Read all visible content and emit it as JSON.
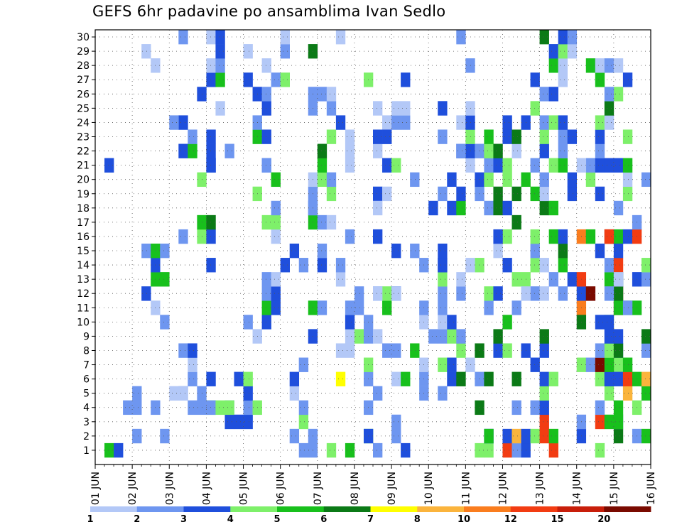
{
  "chart_data": {
    "type": "heatmap",
    "title": "GEFS 6hr padavine po ansamblima Ivan Sedlo",
    "x_tick_labels": [
      "01 JUN",
      "02 JUN",
      "03 JUN",
      "04 JUN",
      "05 JUN",
      "06 JUN",
      "07 JUN",
      "08 JUN",
      "09 JUN",
      "10 JUN",
      "11 JUN",
      "12 JUN",
      "13 JUN",
      "14 JUN",
      "15 JUN",
      "16 JUN"
    ],
    "y_tick_labels": [
      "1",
      "2",
      "3",
      "4",
      "5",
      "6",
      "7",
      "8",
      "9",
      "10",
      "11",
      "12",
      "13",
      "14",
      "15",
      "16",
      "17",
      "18",
      "19",
      "20",
      "21",
      "22",
      "23",
      "24",
      "25",
      "26",
      "27",
      "28",
      "29",
      "30"
    ],
    "steps_per_day": 4,
    "time_steps": 60,
    "members": 30,
    "grid": true,
    "legend_position": "bottom",
    "colorbar": {
      "labels": [
        "1",
        "2",
        "3",
        "4",
        "5",
        "6",
        "7",
        "8",
        "10",
        "12",
        "15",
        "20"
      ],
      "colors": [
        "#b3c8f7",
        "#6e96f0",
        "#1f4fdc",
        "#7ef06a",
        "#18c01c",
        "#0b7a16",
        "#ffff00",
        "#fbb43c",
        "#fa7d1e",
        "#f23c12",
        "#c81e0a",
        "#7a0a00"
      ]
    },
    "cells": [
      [
        1,
        2,
        5
      ],
      [
        1,
        3,
        3
      ],
      [
        1,
        23,
        2
      ],
      [
        1,
        24,
        2
      ],
      [
        1,
        26,
        4
      ],
      [
        1,
        28,
        5
      ],
      [
        1,
        34,
        3
      ],
      [
        2,
        5,
        2
      ],
      [
        2,
        8,
        2
      ],
      [
        2,
        30,
        3
      ],
      [
        2,
        43,
        5
      ],
      [
        3,
        15,
        3
      ],
      [
        4,
        4,
        2
      ],
      [
        4,
        5,
        2
      ],
      [
        4,
        7,
        2
      ],
      [
        4,
        12,
        2
      ],
      [
        4,
        13,
        2
      ],
      [
        4,
        14,
        4
      ],
      [
        4,
        15,
        4
      ],
      [
        5,
        5,
        2
      ],
      [
        5,
        9,
        1
      ],
      [
        5,
        10,
        1
      ],
      [
        6,
        27,
        7
      ],
      [
        6,
        34,
        5
      ],
      [
        7,
        23,
        2
      ],
      [
        7,
        41,
        1
      ],
      [
        8,
        35,
        5
      ],
      [
        10,
        53,
        6
      ],
      [
        10,
        55,
        3
      ],
      [
        11,
        58,
        2
      ],
      [
        12,
        31,
        1
      ],
      [
        12,
        33,
        1
      ],
      [
        12,
        47,
        1
      ],
      [
        12,
        56,
        2
      ],
      [
        13,
        40,
        1
      ],
      [
        13,
        57,
        1
      ],
      [
        14,
        21,
        3
      ],
      [
        14,
        23,
        2
      ],
      [
        14,
        38,
        3
      ],
      [
        14,
        41,
        1
      ],
      [
        15,
        22,
        3
      ],
      [
        15,
        25,
        2
      ],
      [
        15,
        33,
        3
      ],
      [
        15,
        35,
        2
      ],
      [
        15,
        38,
        3
      ],
      [
        15,
        55,
        3
      ],
      [
        16,
        28,
        2
      ],
      [
        16,
        31,
        3
      ],
      [
        16,
        44,
        3
      ],
      [
        17,
        59,
        2
      ],
      [
        18,
        24,
        2
      ],
      [
        18,
        31,
        1
      ],
      [
        18,
        45,
        3
      ],
      [
        19,
        55,
        3
      ],
      [
        20,
        35,
        2
      ],
      [
        20,
        60,
        2
      ],
      [
        21,
        2,
        3
      ],
      [
        21,
        13,
        3
      ],
      [
        21,
        19,
        2
      ],
      [
        21,
        28,
        1
      ],
      [
        21,
        53,
        1
      ],
      [
        22,
        15,
        2
      ],
      [
        22,
        28,
        1
      ],
      [
        22,
        40,
        2
      ],
      [
        23,
        28,
        1
      ],
      [
        23,
        32,
        3
      ],
      [
        24,
        9,
        2
      ],
      [
        24,
        27,
        3
      ],
      [
        25,
        34,
        1
      ],
      [
        26,
        12,
        3
      ],
      [
        26,
        56,
        2
      ],
      [
        27,
        17,
        3
      ],
      [
        27,
        21,
        4
      ],
      [
        27,
        30,
        4
      ],
      [
        27,
        34,
        3
      ],
      [
        28,
        7,
        1
      ],
      [
        28,
        19,
        1
      ],
      [
        28,
        41,
        2
      ],
      [
        29,
        6,
        1
      ],
      [
        29,
        17,
        1
      ],
      [
        29,
        21,
        2
      ],
      [
        29,
        24,
        6
      ],
      [
        30,
        10,
        2
      ],
      [
        30,
        21,
        1
      ],
      [
        30,
        27,
        1
      ],
      [
        30,
        40,
        2
      ]
    ],
    "blocks": [
      [
        6,
        10,
        8,
        16,
        [
          2,
          3,
          2,
          5,
          3,
          1,
          2
        ]
      ],
      [
        10,
        4,
        13,
        8,
        [
          3,
          2,
          4,
          2,
          1,
          3,
          2,
          4,
          2,
          3,
          1
        ]
      ],
      [
        10,
        14,
        13,
        24,
        [
          3,
          4,
          2,
          3,
          5,
          2,
          1,
          3,
          2,
          6,
          3,
          2,
          4
        ]
      ],
      [
        13,
        25,
        14,
        30,
        [
          2,
          5,
          1,
          3,
          2,
          4,
          2,
          1
        ]
      ],
      [
        15,
        3,
        18,
        6,
        [
          2,
          1,
          3,
          2,
          4,
          1,
          2,
          3
        ]
      ],
      [
        17,
        9,
        20,
        27,
        [
          3,
          1,
          2,
          2,
          4,
          3,
          1,
          2,
          5,
          2,
          3,
          2,
          1
        ]
      ],
      [
        22,
        2,
        24,
        9,
        [
          2,
          3,
          1,
          2,
          4,
          2,
          1,
          3
        ]
      ],
      [
        24,
        11,
        26,
        26,
        [
          2,
          5,
          3,
          2,
          1,
          6,
          2,
          3,
          4,
          2,
          1,
          5,
          2
        ]
      ],
      [
        27,
        8,
        29,
        14,
        [
          5,
          2,
          1,
          3,
          2,
          4,
          2,
          3
        ]
      ],
      [
        30,
        1,
        33,
        12,
        [
          2,
          3,
          1,
          2,
          4,
          2,
          5,
          2,
          3,
          1
        ]
      ],
      [
        31,
        19,
        34,
        25,
        [
          1,
          2,
          3,
          2,
          1,
          3,
          2,
          4
        ]
      ],
      [
        36,
        5,
        40,
        14,
        [
          3,
          2,
          1,
          2,
          4,
          3,
          5,
          2,
          6
        ]
      ],
      [
        37,
        18,
        41,
        26,
        [
          2,
          3,
          1,
          4,
          2,
          3,
          5,
          2,
          1
        ]
      ],
      [
        42,
        1,
        46,
        6,
        [
          5,
          6,
          8,
          4,
          3,
          10,
          2,
          3
        ]
      ],
      [
        42,
        8,
        47,
        24,
        [
          3,
          4,
          5,
          6,
          3,
          2,
          4,
          1,
          6,
          3,
          2,
          4,
          5
        ]
      ],
      [
        47,
        1,
        50,
        9,
        [
          3,
          6,
          3,
          3,
          2,
          4,
          6,
          5,
          3,
          10
        ]
      ],
      [
        48,
        10,
        52,
        30,
        [
          2,
          1,
          3,
          5,
          4,
          3,
          6,
          2,
          1,
          3,
          4,
          2,
          5,
          3
        ]
      ],
      [
        53,
        1,
        57,
        16,
        [
          2,
          3,
          4,
          12,
          2,
          5,
          20,
          9,
          3,
          4,
          10,
          2,
          5,
          6,
          8
        ]
      ],
      [
        56,
        2,
        60,
        16,
        [
          5,
          4,
          3,
          2,
          8,
          10,
          3,
          5,
          2,
          4,
          6,
          3
        ]
      ],
      [
        54,
        18,
        58,
        28,
        [
          3,
          5,
          6,
          2,
          1,
          4,
          3,
          2,
          4,
          3
        ]
      ]
    ]
  }
}
